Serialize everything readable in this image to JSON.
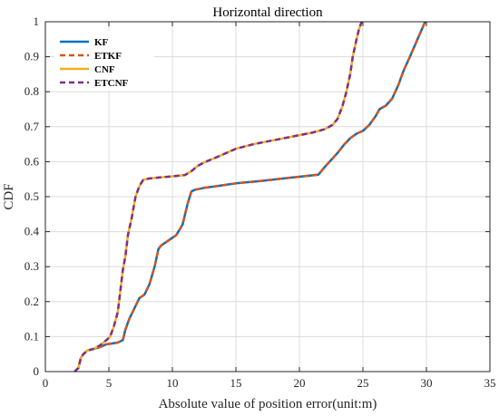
{
  "chart_data": {
    "type": "line",
    "title": "Horizontal direction",
    "xlabel": "Absolute value of position error(unit:m)",
    "ylabel": "CDF",
    "xlim": [
      0,
      35
    ],
    "ylim": [
      0,
      1
    ],
    "xticks": [
      "0",
      "5",
      "10",
      "15",
      "20",
      "25",
      "30",
      "35"
    ],
    "yticks": [
      "0",
      "0.1",
      "0.2",
      "0.3",
      "0.4",
      "0.5",
      "0.6",
      "0.7",
      "0.8",
      "0.9",
      "1"
    ],
    "grid": true,
    "legend_position": "top-left",
    "series": [
      {
        "name": "KF",
        "color": "#0072BD",
        "dash": "solid",
        "x": [
          2.3,
          2.6,
          2.8,
          3.0,
          3.3,
          3.8,
          4.3,
          4.8,
          5.2,
          5.7,
          6.1,
          6.3,
          6.6,
          7.0,
          7.4,
          7.8,
          8.2,
          8.6,
          8.9,
          9.1,
          9.5,
          9.9,
          10.3,
          10.8,
          11.2,
          11.5,
          11.8,
          12.5,
          13.5,
          15.0,
          17.0,
          19.0,
          21.5,
          22.0,
          22.5,
          23.0,
          23.5,
          24.0,
          24.5,
          25.0,
          25.5,
          26.0,
          26.3,
          26.8,
          27.3,
          27.8,
          28.2,
          28.7,
          29.3,
          29.9
        ],
        "y": [
          0.0,
          0.01,
          0.04,
          0.05,
          0.06,
          0.065,
          0.07,
          0.078,
          0.08,
          0.083,
          0.09,
          0.12,
          0.15,
          0.18,
          0.21,
          0.22,
          0.25,
          0.3,
          0.35,
          0.36,
          0.37,
          0.38,
          0.39,
          0.42,
          0.48,
          0.515,
          0.52,
          0.525,
          0.53,
          0.538,
          0.545,
          0.553,
          0.563,
          0.585,
          0.605,
          0.625,
          0.648,
          0.667,
          0.68,
          0.688,
          0.705,
          0.73,
          0.75,
          0.76,
          0.78,
          0.82,
          0.86,
          0.9,
          0.95,
          1.0
        ]
      },
      {
        "name": "ETKF",
        "color": "#D95319",
        "dash": "dashed",
        "x": [
          2.3,
          2.6,
          2.8,
          3.0,
          3.3,
          3.8,
          4.3,
          4.8,
          5.2,
          5.7,
          6.1,
          6.3,
          6.6,
          7.0,
          7.4,
          7.8,
          8.2,
          8.6,
          8.9,
          9.1,
          9.5,
          9.9,
          10.3,
          10.8,
          11.2,
          11.5,
          11.8,
          12.5,
          13.5,
          15.0,
          17.0,
          19.0,
          21.5,
          22.0,
          22.5,
          23.0,
          23.5,
          24.0,
          24.5,
          25.0,
          25.5,
          26.0,
          26.3,
          26.8,
          27.3,
          27.8,
          28.2,
          28.7,
          29.3,
          29.9
        ],
        "y": [
          0.0,
          0.01,
          0.04,
          0.05,
          0.06,
          0.065,
          0.07,
          0.078,
          0.08,
          0.083,
          0.09,
          0.12,
          0.15,
          0.18,
          0.21,
          0.22,
          0.25,
          0.3,
          0.35,
          0.36,
          0.37,
          0.38,
          0.39,
          0.42,
          0.48,
          0.515,
          0.52,
          0.525,
          0.53,
          0.538,
          0.545,
          0.553,
          0.563,
          0.585,
          0.605,
          0.625,
          0.648,
          0.667,
          0.68,
          0.688,
          0.705,
          0.73,
          0.75,
          0.76,
          0.78,
          0.82,
          0.86,
          0.9,
          0.95,
          1.0
        ]
      },
      {
        "name": "CNF",
        "color": "#EDB120",
        "dash": "solid",
        "x": [
          2.3,
          2.6,
          2.8,
          3.0,
          3.3,
          3.8,
          4.3,
          4.8,
          5.1,
          5.4,
          5.7,
          5.9,
          6.1,
          6.3,
          6.5,
          6.8,
          7.1,
          7.4,
          7.7,
          8.2,
          9.0,
          10.0,
          11.0,
          11.5,
          12.0,
          12.5,
          13.5,
          15.0,
          16.5,
          18.5,
          20.0,
          21.0,
          22.0,
          22.6,
          23.0,
          23.4,
          23.7,
          24.0,
          24.2,
          24.5,
          24.7,
          24.9
        ],
        "y": [
          0.0,
          0.01,
          0.04,
          0.05,
          0.06,
          0.065,
          0.075,
          0.09,
          0.1,
          0.13,
          0.17,
          0.23,
          0.29,
          0.33,
          0.39,
          0.44,
          0.5,
          0.53,
          0.548,
          0.552,
          0.555,
          0.558,
          0.562,
          0.573,
          0.588,
          0.598,
          0.613,
          0.637,
          0.651,
          0.665,
          0.676,
          0.683,
          0.693,
          0.705,
          0.722,
          0.76,
          0.8,
          0.85,
          0.9,
          0.95,
          0.98,
          1.0
        ]
      },
      {
        "name": "ETCNF",
        "color": "#7E2F8E",
        "dash": "dashed",
        "x": [
          2.3,
          2.6,
          2.8,
          3.0,
          3.3,
          3.8,
          4.3,
          4.8,
          5.1,
          5.4,
          5.7,
          5.9,
          6.1,
          6.3,
          6.5,
          6.8,
          7.1,
          7.4,
          7.7,
          8.2,
          9.0,
          10.0,
          11.0,
          11.5,
          12.0,
          12.5,
          13.5,
          15.0,
          16.5,
          18.5,
          20.0,
          21.0,
          22.0,
          22.6,
          23.0,
          23.4,
          23.7,
          24.0,
          24.2,
          24.5,
          24.7,
          24.9
        ],
        "y": [
          0.0,
          0.01,
          0.04,
          0.05,
          0.06,
          0.065,
          0.075,
          0.09,
          0.1,
          0.13,
          0.17,
          0.23,
          0.29,
          0.33,
          0.39,
          0.44,
          0.5,
          0.53,
          0.548,
          0.552,
          0.555,
          0.558,
          0.562,
          0.573,
          0.588,
          0.598,
          0.613,
          0.637,
          0.651,
          0.665,
          0.676,
          0.683,
          0.693,
          0.705,
          0.722,
          0.76,
          0.8,
          0.85,
          0.9,
          0.95,
          0.98,
          1.0
        ]
      }
    ]
  }
}
